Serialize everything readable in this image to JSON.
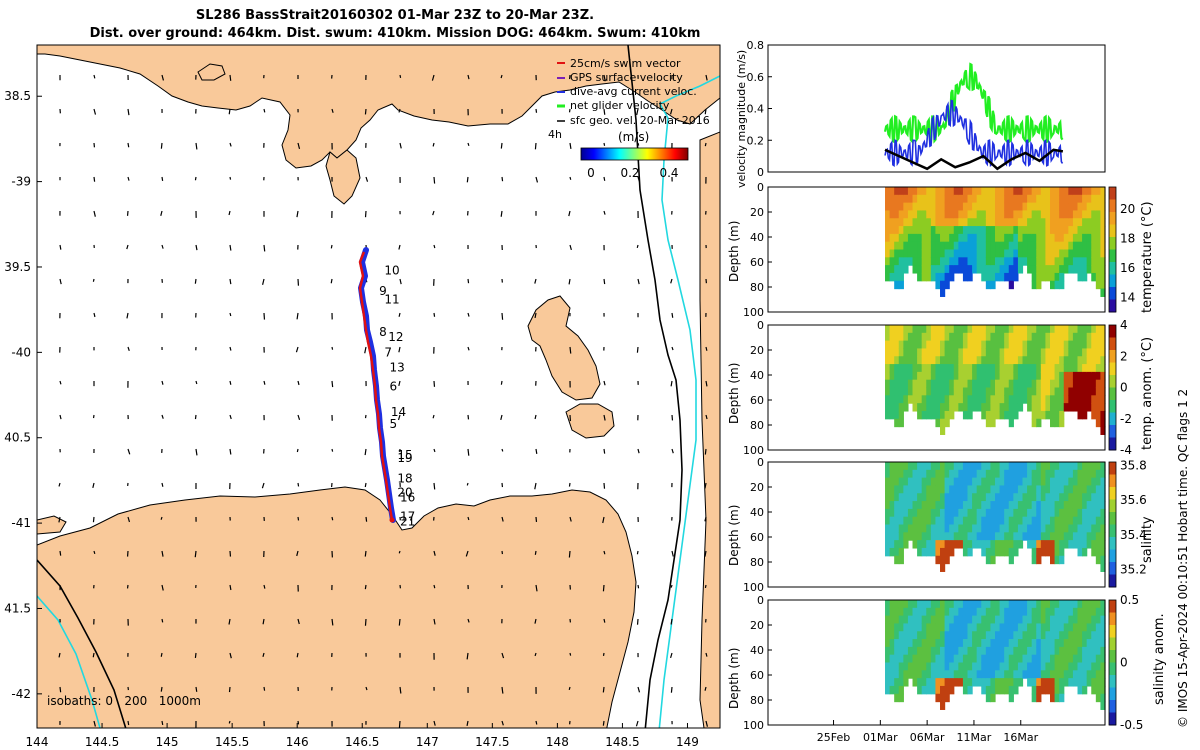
{
  "title": {
    "line1": "SL286 BassStrait20160302 01-Mar 23Z to 20-Mar 23Z.",
    "line2": "Dist. over ground: 464km. Dist. swum: 410km. Mission DOG: 464km. Swum: 410km"
  },
  "colors": {
    "land": "#f9c99a",
    "sea": "#ffffff",
    "track_red": "#e11111",
    "track_blue": "#1f2fe0",
    "net_velocity": "#22ee22",
    "isobath_200": "#000000",
    "isobath_1000": "#22d8e0"
  },
  "chart_data": [
    {
      "type": "map",
      "id": "map",
      "xlabel_ticks": [
        "144",
        "144.5",
        "145",
        "145.5",
        "146",
        "146.5",
        "147",
        "147.5",
        "148",
        "148.5",
        "149"
      ],
      "ylabel_ticks": [
        "38.5",
        "-39",
        "39.5",
        "-40",
        "40.5",
        "-41",
        "41.5",
        "-42"
      ],
      "xlim": [
        144,
        149.25
      ],
      "ylim": [
        -42.2,
        -38.2
      ],
      "legend": {
        "items": [
          "25cm/s swim vector",
          "GPS surface velocity",
          "dive-avg current veloc.",
          "net glider velocity",
          "sfc geo. vel. 20-Mar-2016 4h"
        ],
        "colorbar_label": "(m/s)",
        "colorbar_ticks": [
          "0",
          "0.2",
          "0.4"
        ]
      },
      "isobaths_label": "isobaths: 0   200   1000m",
      "day_labels": [
        {
          "t": "10",
          "lon": 146.67,
          "lat": -39.52
        },
        {
          "t": "9",
          "lon": 146.63,
          "lat": -39.64
        },
        {
          "t": "11",
          "lon": 146.67,
          "lat": -39.69
        },
        {
          "t": "8",
          "lon": 146.63,
          "lat": -39.88
        },
        {
          "t": "12",
          "lon": 146.7,
          "lat": -39.91
        },
        {
          "t": "7",
          "lon": 146.67,
          "lat": -40.0
        },
        {
          "t": "13",
          "lon": 146.71,
          "lat": -40.09
        },
        {
          "t": "6",
          "lon": 146.71,
          "lat": -40.2
        },
        {
          "t": "14",
          "lon": 146.72,
          "lat": -40.35
        },
        {
          "t": "5",
          "lon": 146.71,
          "lat": -40.42
        },
        {
          "t": "15",
          "lon": 146.77,
          "lat": -40.6
        },
        {
          "t": "19",
          "lon": 146.77,
          "lat": -40.62
        },
        {
          "t": "18",
          "lon": 146.77,
          "lat": -40.74
        },
        {
          "t": "20",
          "lon": 146.77,
          "lat": -40.82
        },
        {
          "t": "16",
          "lon": 146.79,
          "lat": -40.85
        },
        {
          "t": "17",
          "lon": 146.79,
          "lat": -40.96
        },
        {
          "t": "21",
          "lon": 146.79,
          "lat": -40.99
        }
      ]
    },
    {
      "type": "line",
      "id": "velocity",
      "ylabel": "velocity magnitude (m/s)",
      "ylim": [
        0,
        0.8
      ],
      "yticks": [
        "0",
        "0.2",
        "0.4",
        "0.6",
        "0.8"
      ],
      "xlim_days": [
        -11,
        25
      ],
      "series": [
        {
          "name": "net glider velocity",
          "color": "#22ee22",
          "start": 1.5,
          "end": 20.5,
          "base": 0.27,
          "amp": 0.08,
          "peak_day": 10.5,
          "peak": 0.6
        },
        {
          "name": "dive-avg current veloc.",
          "color": "#1f2fe0",
          "start": 1.5,
          "end": 20.5,
          "base": 0.12,
          "amp": 0.08,
          "peak_day": 8.5,
          "peak": 0.37
        },
        {
          "name": "sfc geo. vel.",
          "color": "#000000",
          "x": [
            1.5,
            3,
            4.5,
            6,
            7.5,
            9,
            10.5,
            12,
            13.5,
            15,
            16.5,
            18,
            19.5,
            20.5
          ],
          "y": [
            0.14,
            0.1,
            0.06,
            0.02,
            0.08,
            0.03,
            0.06,
            0.1,
            0.02,
            0.08,
            0.12,
            0.07,
            0.14,
            0.13
          ]
        }
      ]
    },
    {
      "type": "heatmap",
      "id": "temperature",
      "ylabel": "Depth (m)",
      "ylim": [
        0,
        100
      ],
      "yticks": [
        "0",
        "20",
        "40",
        "60",
        "80",
        "100"
      ],
      "cbar_label": "temperature (°C)",
      "cbar_range": [
        13,
        21.5
      ],
      "cbar_ticks": [
        "20",
        "18",
        "16",
        "14"
      ],
      "palette": "thermal"
    },
    {
      "type": "heatmap",
      "id": "temp_anom",
      "ylabel": "Depth (m)",
      "ylim": [
        0,
        100
      ],
      "yticks": [
        "0",
        "20",
        "40",
        "60",
        "80",
        "100"
      ],
      "cbar_label": "temp. anom. (°C)",
      "cbar_range": [
        -4,
        4
      ],
      "cbar_ticks": [
        "4",
        "2",
        "0",
        "-2",
        "-4"
      ],
      "palette": "anomaly"
    },
    {
      "type": "heatmap",
      "id": "salinity",
      "ylabel": "Depth (m)",
      "ylim": [
        0,
        100
      ],
      "yticks": [
        "0",
        "20",
        "40",
        "60",
        "80",
        "100"
      ],
      "cbar_label": "salinity",
      "cbar_range": [
        35.1,
        35.82
      ],
      "cbar_ticks": [
        "35.8",
        "35.6",
        "35.4",
        "35.2"
      ],
      "palette": "salinity"
    },
    {
      "type": "heatmap",
      "id": "sal_anom",
      "ylabel": "Depth (m)",
      "ylim": [
        0,
        100
      ],
      "yticks": [
        "0",
        "20",
        "40",
        "60",
        "80",
        "100"
      ],
      "cbar_label": "salinity anom.",
      "cbar_range": [
        -0.5,
        0.5
      ],
      "cbar_ticks": [
        "0.5",
        "0",
        "-0.5"
      ],
      "palette": "salanom"
    }
  ],
  "time_axis": {
    "ticks": [
      "25Feb",
      "01Mar",
      "06Mar",
      "11Mar",
      "16Mar"
    ],
    "days": [
      -4,
      1,
      6,
      11,
      16
    ]
  },
  "side_note": "© IMOS 15-Apr-2024 00:10:51 Hobart time. QC flags 1  2"
}
